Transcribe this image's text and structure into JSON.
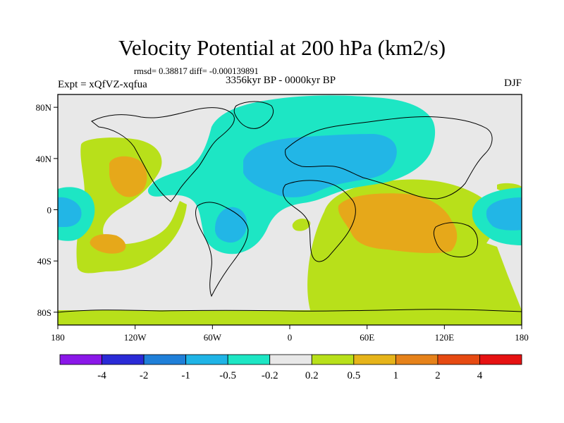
{
  "title": "Velocity Potential at 200 hPa (km2/s)",
  "stats": "rmsd= 0.38817 diff= -0.000139891",
  "experiment": "Expt = xQfVZ-xqfua",
  "period": "3356kyr BP - 0000kyr BP",
  "season": "DJF",
  "lat_ticks": [
    "80N",
    "40N",
    "0",
    "40S",
    "80S"
  ],
  "lon_ticks": [
    "180",
    "120W",
    "60W",
    "0",
    "60E",
    "120E",
    "180"
  ],
  "colorbar": {
    "labels": [
      "-4",
      "-2",
      "-1",
      "-0.5",
      "-0.2",
      "0.2",
      "0.5",
      "1",
      "2",
      "4"
    ],
    "colors": [
      "#8a17e8",
      "#2a2ad6",
      "#1f7fd8",
      "#1fb4e6",
      "#1de6c4",
      "#e8e8e8",
      "#b8e01a",
      "#e6b41a",
      "#e6821a",
      "#e64a12",
      "#e61212"
    ]
  },
  "palette": {
    "blue": "#22b6e6",
    "teal": "#1de6c4",
    "neutral": "#e8e8e8",
    "green": "#b8e01a",
    "orange": "#e6a81a"
  }
}
